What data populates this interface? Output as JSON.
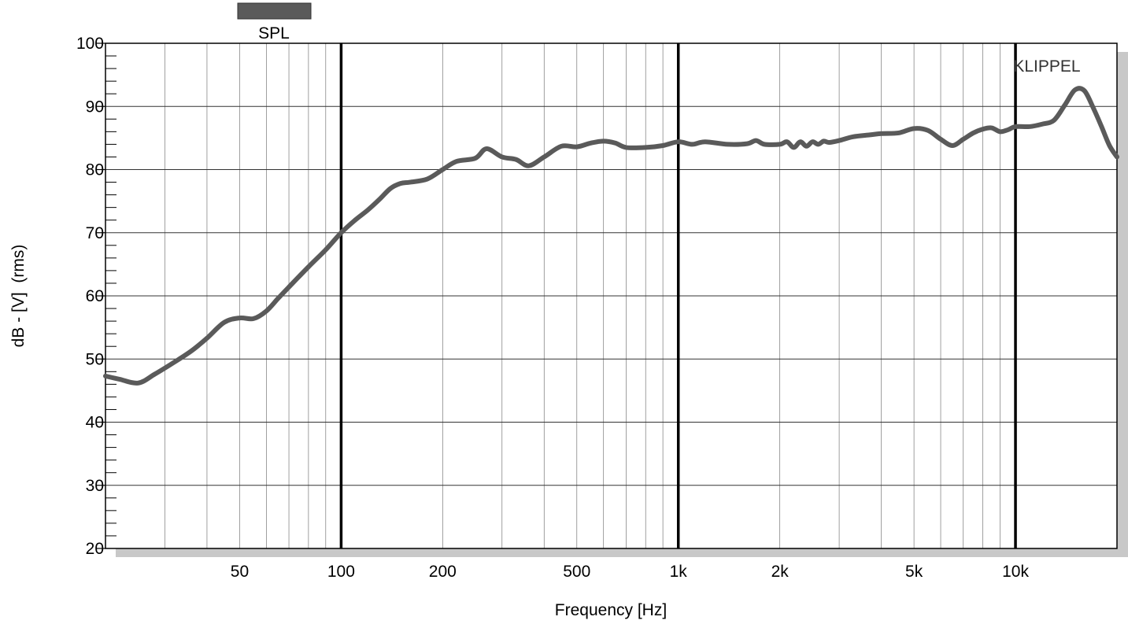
{
  "chart_data": {
    "type": "line",
    "xlabel": "Frequency [Hz]",
    "ylabel": "dB - [V]  (rms)",
    "xscale": "log",
    "xlim": [
      20,
      20000
    ],
    "ylim": [
      20,
      100
    ],
    "yticks": [
      20,
      30,
      40,
      50,
      60,
      70,
      80,
      90,
      100
    ],
    "xtick_values": [
      50,
      100,
      200,
      500,
      1000,
      2000,
      5000,
      10000
    ],
    "xtick_labels": [
      "50",
      "100",
      "200",
      "500",
      "1k",
      "2k",
      "5k",
      "10k"
    ],
    "decade_lines": [
      100,
      1000,
      10000
    ],
    "grid": true,
    "legend": {
      "position": "top-left",
      "label": "SPL"
    },
    "annotation": "KLIPPEL",
    "series": [
      {
        "name": "SPL",
        "color": "#5a5a5a",
        "x": [
          20,
          22,
          25,
          28,
          32,
          36,
          40,
          45,
          50,
          55,
          60,
          65,
          70,
          80,
          90,
          100,
          110,
          120,
          130,
          140,
          150,
          160,
          180,
          200,
          220,
          250,
          270,
          300,
          330,
          360,
          400,
          450,
          500,
          550,
          600,
          650,
          700,
          800,
          900,
          1000,
          1100,
          1200,
          1400,
          1600,
          1700,
          1800,
          2000,
          2100,
          2200,
          2300,
          2400,
          2500,
          2600,
          2700,
          2800,
          3000,
          3300,
          3700,
          4000,
          4500,
          5000,
          5500,
          6000,
          6500,
          7000,
          7500,
          8000,
          8500,
          9000,
          9500,
          10000,
          11000,
          12000,
          13000,
          14000,
          15000,
          16000,
          17000,
          18000,
          19000,
          20000
        ],
        "y": [
          47.3,
          46.8,
          46.2,
          47.6,
          49.5,
          51.3,
          53.3,
          55.8,
          56.5,
          56.4,
          57.6,
          59.6,
          61.4,
          64.6,
          67.3,
          70.0,
          72.0,
          73.6,
          75.3,
          77.0,
          77.8,
          78.0,
          78.5,
          80.0,
          81.3,
          81.8,
          83.3,
          82.0,
          81.6,
          80.6,
          82.0,
          83.7,
          83.6,
          84.2,
          84.5,
          84.2,
          83.5,
          83.5,
          83.8,
          84.4,
          84.0,
          84.4,
          84.0,
          84.1,
          84.6,
          84.0,
          84.0,
          84.4,
          83.5,
          84.4,
          83.7,
          84.4,
          84.0,
          84.5,
          84.3,
          84.6,
          85.2,
          85.5,
          85.7,
          85.8,
          86.5,
          86.2,
          84.8,
          83.8,
          84.8,
          85.8,
          86.4,
          86.6,
          86.0,
          86.3,
          86.8,
          86.8,
          87.2,
          87.8,
          90.2,
          92.6,
          92.5,
          89.8,
          86.8,
          83.8,
          82.0
        ]
      }
    ]
  }
}
